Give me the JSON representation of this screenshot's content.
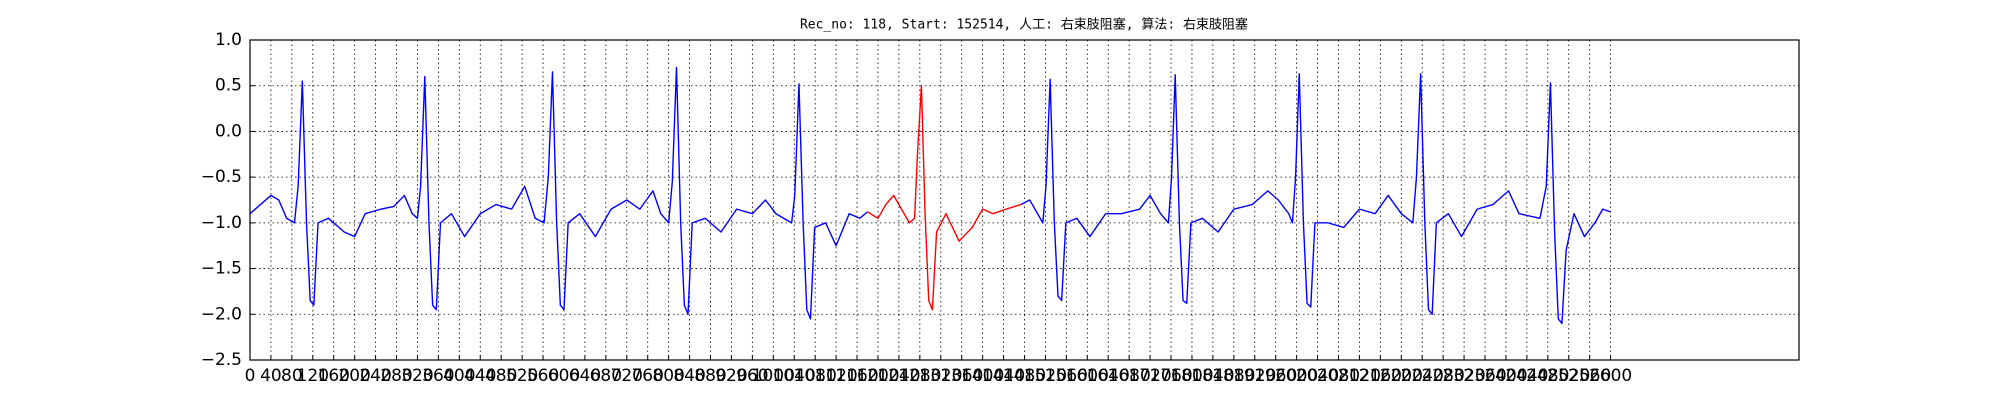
{
  "chart_data": {
    "type": "line",
    "title": "Rec_no: 118, Start: 152514, 人工: 右束肢阻塞, 算法: 右束肢阻塞",
    "xlim": [
      0,
      2960
    ],
    "ylim": [
      -2.5,
      1.0
    ],
    "xticks": [
      0,
      40,
      80,
      120,
      160,
      200,
      240,
      280,
      320,
      360,
      400,
      440,
      480,
      520,
      560,
      600,
      640,
      680,
      720,
      760,
      800,
      840,
      880,
      920,
      960,
      1000,
      1040,
      1080,
      1120,
      1160,
      1200,
      1240,
      1280,
      1320,
      1360,
      1400,
      1440,
      1480,
      1520,
      1560,
      1600,
      1640,
      1680,
      1720,
      1760,
      1800,
      1840,
      1880,
      1920,
      1960,
      2000,
      2040,
      2080,
      2120,
      2160,
      2200,
      2240,
      2280,
      2320,
      2360,
      2400,
      2440,
      2480,
      2520,
      2560,
      2600
    ],
    "yticks": [
      {
        "value": -2.5,
        "label": "−2.5"
      },
      {
        "value": -2.0,
        "label": "−2.0"
      },
      {
        "value": -1.5,
        "label": "−1.5"
      },
      {
        "value": -1.0,
        "label": "−1.0"
      },
      {
        "value": -0.5,
        "label": "−0.5"
      },
      {
        "value": 0.0,
        "label": "0.0"
      },
      {
        "value": 0.5,
        "label": "0.5"
      },
      {
        "value": 1.0,
        "label": "1.0"
      }
    ],
    "grid": true,
    "series": [
      {
        "color": "#0000ff",
        "x": [
          0,
          20,
          40,
          55,
          70,
          85,
          92,
          100,
          108,
          115,
          122,
          130,
          150,
          180,
          200,
          220,
          250,
          275,
          295,
          310,
          320,
          326,
          334,
          342,
          349,
          356,
          364,
          385,
          410,
          440,
          470,
          500,
          525,
          545,
          562,
          570,
          578,
          586,
          593,
          600,
          608,
          630,
          660,
          690,
          720,
          745,
          770,
          785,
          800,
          807,
          815,
          823,
          830,
          837,
          845,
          870,
          900,
          930,
          960,
          985,
          1005,
          1035,
          1041,
          1049,
          1057,
          1064,
          1071,
          1079,
          1100,
          1120,
          1145,
          1165,
          1180,
          1300,
          1473,
          1490,
          1505,
          1515,
          1521,
          1529,
          1537,
          1544,
          1551,
          1559,
          1580,
          1605,
          1635,
          1665,
          1700,
          1720,
          1740,
          1755,
          1761,
          1768,
          1776,
          1783,
          1790,
          1798,
          1820,
          1850,
          1880,
          1915,
          1945,
          1965,
          1985,
          1992,
          1998,
          2005,
          2013,
          2020,
          2027,
          2035,
          2060,
          2090,
          2120,
          2150,
          2175,
          2200,
          2222,
          2229,
          2237,
          2245,
          2252,
          2259,
          2267,
          2290,
          2315,
          2345,
          2375,
          2405,
          2425,
          2465,
          2477,
          2485,
          2493,
          2500,
          2507,
          2515,
          2530,
          2550,
          2570,
          2585,
          2600
        ],
        "values": [
          -0.9,
          -0.8,
          -0.7,
          -0.75,
          -0.95,
          -1.0,
          -0.6,
          0.55,
          -1.0,
          -1.85,
          -1.9,
          -1.0,
          -0.95,
          -1.1,
          -1.15,
          -0.9,
          -0.85,
          -0.82,
          -0.7,
          -0.9,
          -0.95,
          -0.6,
          0.6,
          -1.0,
          -1.9,
          -1.95,
          -1.0,
          -0.9,
          -1.15,
          -0.9,
          -0.8,
          -0.85,
          -0.6,
          -0.95,
          -1.0,
          -0.5,
          0.65,
          -1.0,
          -1.9,
          -1.95,
          -1.0,
          -0.9,
          -1.15,
          -0.85,
          -0.75,
          -0.85,
          -0.65,
          -0.9,
          -1.0,
          -0.55,
          0.7,
          -1.0,
          -1.9,
          -2.0,
          -1.0,
          -0.95,
          -1.1,
          -0.85,
          -0.9,
          -0.75,
          -0.9,
          -1.0,
          -0.7,
          0.52,
          -1.0,
          -1.95,
          -2.05,
          -1.05,
          -1.0,
          -1.25,
          -0.9,
          -0.95,
          -0.88,
          null,
          -0.8,
          -0.75,
          -0.9,
          -1.0,
          -0.6,
          0.57,
          -1.0,
          -1.8,
          -1.85,
          -1.0,
          -0.95,
          -1.15,
          -0.9,
          -0.9,
          -0.85,
          -0.7,
          -0.9,
          -1.0,
          -0.5,
          0.62,
          -1.0,
          -1.85,
          -1.88,
          -1.0,
          -0.95,
          -1.1,
          -0.85,
          -0.8,
          -0.65,
          -0.75,
          -0.9,
          -1.0,
          -0.5,
          0.63,
          -1.0,
          -1.88,
          -1.92,
          -1.0,
          -1.0,
          -1.05,
          -0.85,
          -0.9,
          -0.7,
          -0.9,
          -1.0,
          -0.5,
          0.63,
          -1.0,
          -1.95,
          -2.0,
          -1.0,
          -0.9,
          -1.15,
          -0.85,
          -0.8,
          -0.65,
          -0.9,
          -0.95,
          -0.6,
          0.53,
          -1.1,
          -2.05,
          -2.1,
          -1.3,
          -0.9,
          -1.15,
          -1.0,
          -0.85,
          -0.88
        ]
      },
      {
        "color": "#ff0000",
        "x": [
          1180,
          1200,
          1215,
          1230,
          1245,
          1260,
          1270,
          1275,
          1283,
          1290,
          1297,
          1304,
          1312,
          1330,
          1355,
          1380,
          1400,
          1420,
          1445,
          1473
        ],
        "values": [
          -0.88,
          -0.95,
          -0.8,
          -0.7,
          -0.85,
          -1.0,
          -0.95,
          -0.3,
          0.5,
          -0.9,
          -1.85,
          -1.95,
          -1.1,
          -0.9,
          -1.2,
          -1.05,
          -0.85,
          -0.9,
          -0.85,
          -0.8
        ]
      }
    ]
  }
}
